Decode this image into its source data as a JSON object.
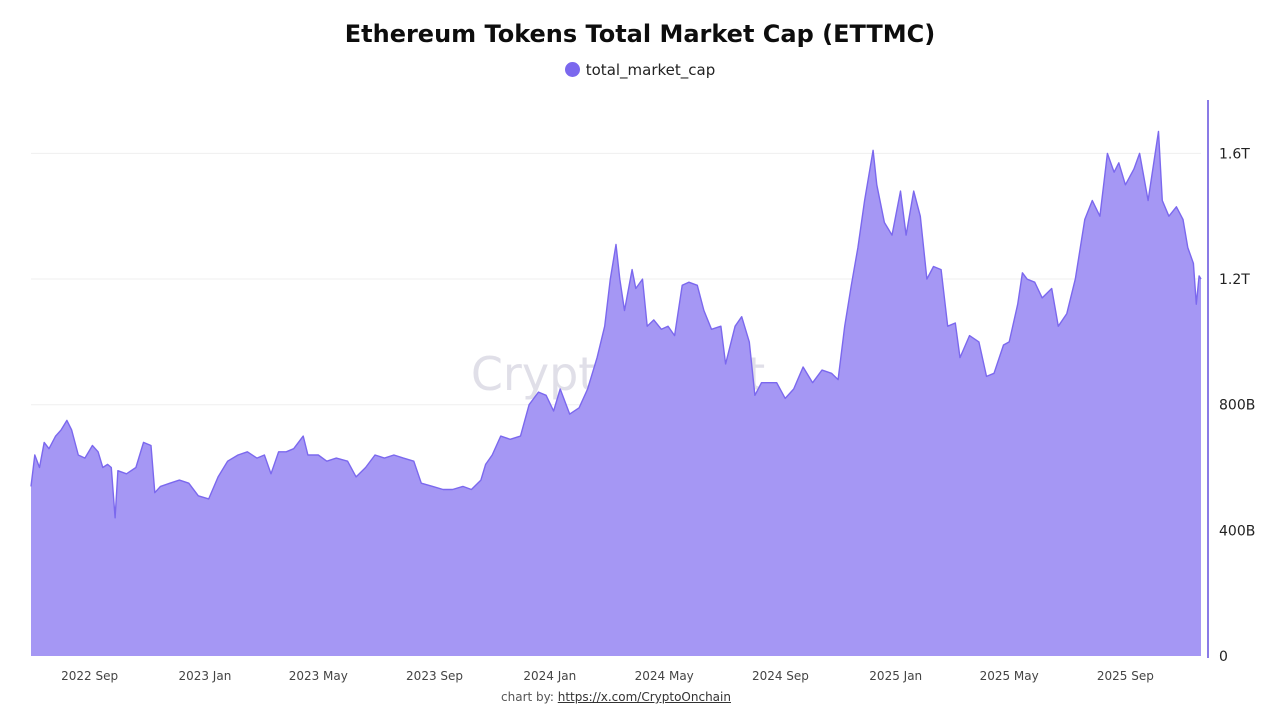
{
  "page": {
    "credit_prefix": "chart by:",
    "credit_link": "https://x.com/CryptoOnchain"
  },
  "watermark": "CryptoQuant",
  "colors": {
    "area_fill": "#a597f4",
    "line": "#7b68ee",
    "axis": "#8a7be6",
    "grid": "#efefef",
    "legend_dot": "#7b68ee"
  },
  "chart_data": {
    "type": "area",
    "title": "Ethereum Tokens Total Market Cap (ETTMC)",
    "legend": [
      "total_market_cap"
    ],
    "legend_position": "top-center",
    "y_axis_position": "right",
    "units": "USD billions",
    "ylim": [
      0,
      1770
    ],
    "yticks": [
      {
        "value": 0,
        "label": "0"
      },
      {
        "value": 400,
        "label": "400B"
      },
      {
        "value": 800,
        "label": "800B"
      },
      {
        "value": 1200,
        "label": "1.2T"
      },
      {
        "value": 1600,
        "label": "1.6T"
      }
    ],
    "x_range": [
      "2022-07-01",
      "2025-11-20"
    ],
    "xticks": [
      {
        "date": "2022-09-01",
        "label": "2022 Sep"
      },
      {
        "date": "2023-01-01",
        "label": "2023 Jan"
      },
      {
        "date": "2023-05-01",
        "label": "2023 May"
      },
      {
        "date": "2023-09-01",
        "label": "2023 Sep"
      },
      {
        "date": "2024-01-01",
        "label": "2024 Jan"
      },
      {
        "date": "2024-05-01",
        "label": "2024 May"
      },
      {
        "date": "2024-09-01",
        "label": "2024 Sep"
      },
      {
        "date": "2025-01-01",
        "label": "2025 Jan"
      },
      {
        "date": "2025-05-01",
        "label": "2025 May"
      },
      {
        "date": "2025-09-01",
        "label": "2025 Sep"
      }
    ],
    "grid": true,
    "series": [
      {
        "name": "total_market_cap",
        "points": [
          [
            "2022-07-01",
            540
          ],
          [
            "2022-07-05",
            640
          ],
          [
            "2022-07-10",
            600
          ],
          [
            "2022-07-15",
            680
          ],
          [
            "2022-07-20",
            660
          ],
          [
            "2022-07-27",
            700
          ],
          [
            "2022-08-02",
            720
          ],
          [
            "2022-08-08",
            750
          ],
          [
            "2022-08-13",
            720
          ],
          [
            "2022-08-20",
            640
          ],
          [
            "2022-08-27",
            630
          ],
          [
            "2022-09-04",
            670
          ],
          [
            "2022-09-10",
            650
          ],
          [
            "2022-09-15",
            600
          ],
          [
            "2022-09-20",
            610
          ],
          [
            "2022-09-24",
            600
          ],
          [
            "2022-09-28",
            440
          ],
          [
            "2022-10-01",
            590
          ],
          [
            "2022-10-10",
            580
          ],
          [
            "2022-10-20",
            600
          ],
          [
            "2022-10-28",
            680
          ],
          [
            "2022-11-05",
            670
          ],
          [
            "2022-11-09",
            520
          ],
          [
            "2022-11-15",
            540
          ],
          [
            "2022-11-25",
            550
          ],
          [
            "2022-12-05",
            560
          ],
          [
            "2022-12-15",
            550
          ],
          [
            "2022-12-25",
            510
          ],
          [
            "2023-01-05",
            500
          ],
          [
            "2023-01-15",
            570
          ],
          [
            "2023-01-25",
            620
          ],
          [
            "2023-02-05",
            640
          ],
          [
            "2023-02-15",
            650
          ],
          [
            "2023-02-25",
            630
          ],
          [
            "2023-03-05",
            640
          ],
          [
            "2023-03-12",
            580
          ],
          [
            "2023-03-20",
            650
          ],
          [
            "2023-03-28",
            650
          ],
          [
            "2023-04-05",
            660
          ],
          [
            "2023-04-15",
            700
          ],
          [
            "2023-04-20",
            640
          ],
          [
            "2023-05-01",
            640
          ],
          [
            "2023-05-10",
            620
          ],
          [
            "2023-05-20",
            630
          ],
          [
            "2023-06-01",
            620
          ],
          [
            "2023-06-10",
            570
          ],
          [
            "2023-06-20",
            600
          ],
          [
            "2023-06-30",
            640
          ],
          [
            "2023-07-10",
            630
          ],
          [
            "2023-07-20",
            640
          ],
          [
            "2023-07-30",
            630
          ],
          [
            "2023-08-10",
            620
          ],
          [
            "2023-08-18",
            550
          ],
          [
            "2023-08-30",
            540
          ],
          [
            "2023-09-10",
            530
          ],
          [
            "2023-09-20",
            530
          ],
          [
            "2023-10-01",
            540
          ],
          [
            "2023-10-10",
            530
          ],
          [
            "2023-10-20",
            560
          ],
          [
            "2023-10-25",
            610
          ],
          [
            "2023-11-01",
            640
          ],
          [
            "2023-11-10",
            700
          ],
          [
            "2023-11-20",
            690
          ],
          [
            "2023-12-01",
            700
          ],
          [
            "2023-12-10",
            800
          ],
          [
            "2023-12-20",
            840
          ],
          [
            "2023-12-28",
            830
          ],
          [
            "2024-01-05",
            780
          ],
          [
            "2024-01-12",
            850
          ],
          [
            "2024-01-22",
            770
          ],
          [
            "2024-02-01",
            790
          ],
          [
            "2024-02-10",
            850
          ],
          [
            "2024-02-20",
            950
          ],
          [
            "2024-02-28",
            1050
          ],
          [
            "2024-03-05",
            1200
          ],
          [
            "2024-03-11",
            1310
          ],
          [
            "2024-03-15",
            1200
          ],
          [
            "2024-03-20",
            1100
          ],
          [
            "2024-03-28",
            1230
          ],
          [
            "2024-04-01",
            1170
          ],
          [
            "2024-04-08",
            1200
          ],
          [
            "2024-04-13",
            1050
          ],
          [
            "2024-04-20",
            1070
          ],
          [
            "2024-04-28",
            1040
          ],
          [
            "2024-05-05",
            1050
          ],
          [
            "2024-05-12",
            1020
          ],
          [
            "2024-05-20",
            1180
          ],
          [
            "2024-05-27",
            1190
          ],
          [
            "2024-06-05",
            1180
          ],
          [
            "2024-06-12",
            1100
          ],
          [
            "2024-06-20",
            1040
          ],
          [
            "2024-06-30",
            1050
          ],
          [
            "2024-07-05",
            930
          ],
          [
            "2024-07-15",
            1050
          ],
          [
            "2024-07-22",
            1080
          ],
          [
            "2024-07-30",
            1000
          ],
          [
            "2024-08-05",
            830
          ],
          [
            "2024-08-12",
            870
          ],
          [
            "2024-08-22",
            870
          ],
          [
            "2024-08-28",
            870
          ],
          [
            "2024-09-06",
            820
          ],
          [
            "2024-09-15",
            850
          ],
          [
            "2024-09-25",
            920
          ],
          [
            "2024-10-05",
            870
          ],
          [
            "2024-10-15",
            910
          ],
          [
            "2024-10-25",
            900
          ],
          [
            "2024-11-01",
            880
          ],
          [
            "2024-11-08",
            1050
          ],
          [
            "2024-11-15",
            1180
          ],
          [
            "2024-11-22",
            1300
          ],
          [
            "2024-11-29",
            1450
          ],
          [
            "2024-12-08",
            1610
          ],
          [
            "2024-12-12",
            1500
          ],
          [
            "2024-12-20",
            1380
          ],
          [
            "2024-12-28",
            1340
          ],
          [
            "2025-01-06",
            1480
          ],
          [
            "2025-01-12",
            1340
          ],
          [
            "2025-01-20",
            1480
          ],
          [
            "2025-01-27",
            1400
          ],
          [
            "2025-02-03",
            1200
          ],
          [
            "2025-02-10",
            1240
          ],
          [
            "2025-02-18",
            1230
          ],
          [
            "2025-02-25",
            1050
          ],
          [
            "2025-03-05",
            1060
          ],
          [
            "2025-03-10",
            950
          ],
          [
            "2025-03-20",
            1020
          ],
          [
            "2025-03-30",
            1000
          ],
          [
            "2025-04-07",
            890
          ],
          [
            "2025-04-15",
            900
          ],
          [
            "2025-04-25",
            990
          ],
          [
            "2025-05-01",
            1000
          ],
          [
            "2025-05-10",
            1120
          ],
          [
            "2025-05-15",
            1220
          ],
          [
            "2025-05-20",
            1200
          ],
          [
            "2025-05-28",
            1190
          ],
          [
            "2025-06-05",
            1140
          ],
          [
            "2025-06-15",
            1170
          ],
          [
            "2025-06-22",
            1050
          ],
          [
            "2025-07-01",
            1090
          ],
          [
            "2025-07-10",
            1200
          ],
          [
            "2025-07-20",
            1390
          ],
          [
            "2025-07-28",
            1450
          ],
          [
            "2025-08-05",
            1400
          ],
          [
            "2025-08-13",
            1600
          ],
          [
            "2025-08-20",
            1540
          ],
          [
            "2025-08-25",
            1570
          ],
          [
            "2025-09-01",
            1500
          ],
          [
            "2025-09-10",
            1550
          ],
          [
            "2025-09-16",
            1600
          ],
          [
            "2025-09-25",
            1450
          ],
          [
            "2025-10-06",
            1670
          ],
          [
            "2025-10-10",
            1450
          ],
          [
            "2025-10-17",
            1400
          ],
          [
            "2025-10-25",
            1430
          ],
          [
            "2025-11-01",
            1390
          ],
          [
            "2025-11-06",
            1300
          ],
          [
            "2025-11-12",
            1250
          ],
          [
            "2025-11-15",
            1120
          ],
          [
            "2025-11-18",
            1210
          ],
          [
            "2025-11-20",
            1200
          ]
        ]
      }
    ]
  }
}
